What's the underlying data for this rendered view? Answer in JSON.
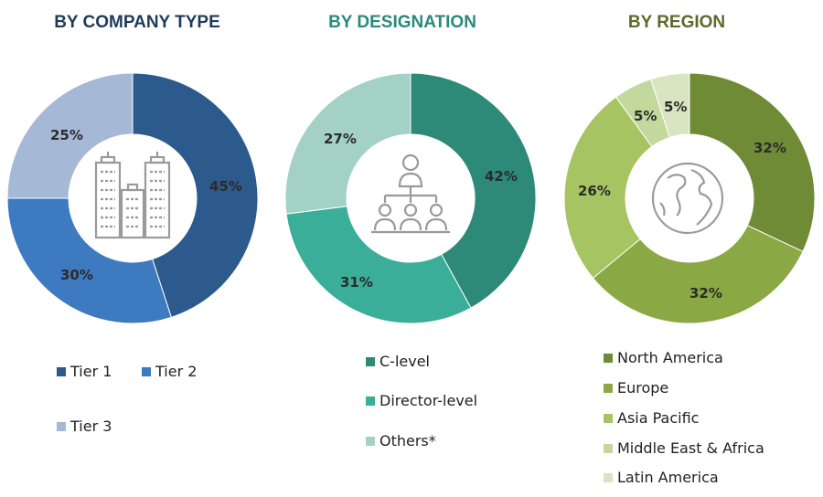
{
  "chart_data": [
    {
      "type": "pie",
      "title": "BY COMPANY TYPE",
      "title_color": "#1f3b5a",
      "categories": [
        "Tier 1",
        "Tier 2",
        "Tier 3"
      ],
      "values": [
        45,
        30,
        25
      ],
      "labels": [
        "45%",
        "30%",
        "25%"
      ],
      "colors": [
        "#2c5a8c",
        "#3d7abf",
        "#a5b8d6"
      ],
      "center_icon": "buildings-icon",
      "legend_placement": "bottom"
    },
    {
      "type": "pie",
      "title": "BY DESIGNATION",
      "title_color": "#2a8a7a",
      "categories": [
        "C-level",
        "Director-level",
        "Others*"
      ],
      "values": [
        42,
        31,
        27
      ],
      "labels": [
        "42%",
        "31%",
        "27%"
      ],
      "colors": [
        "#2d8a78",
        "#3aae98",
        "#a3d1c6"
      ],
      "center_icon": "org-chart-icon",
      "legend_placement": "bottom"
    },
    {
      "type": "pie",
      "title": "BY REGION",
      "title_color": "#5a6b2a",
      "categories": [
        "North America",
        "Europe",
        "Asia Pacific",
        "Middle East & Africa",
        "Latin America"
      ],
      "values": [
        32,
        32,
        26,
        5,
        5
      ],
      "labels": [
        "32%",
        "32%",
        "26%",
        "5%",
        "5%"
      ],
      "colors": [
        "#6f8b36",
        "#8aa844",
        "#a7c462",
        "#c3d89d",
        "#d9e4c2"
      ],
      "center_icon": "globe-icon",
      "legend_placement": "bottom"
    }
  ]
}
